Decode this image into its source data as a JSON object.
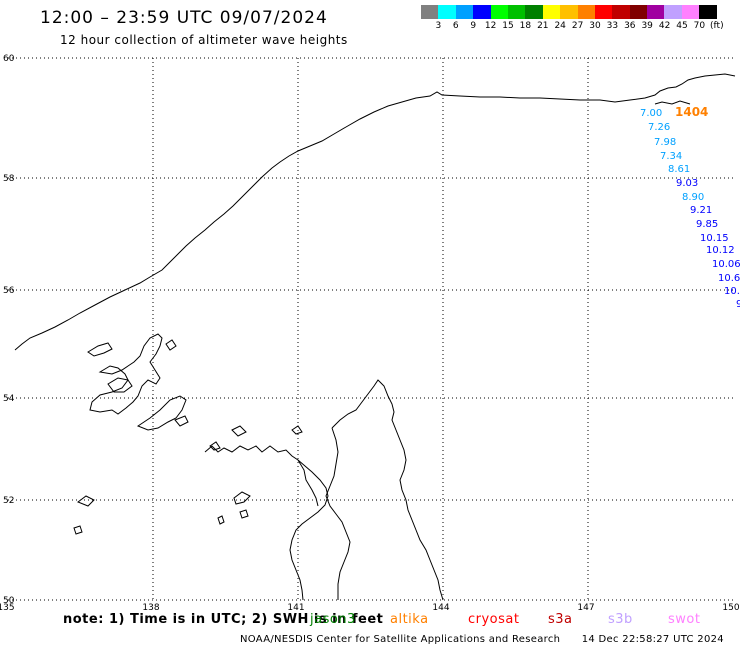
{
  "header": {
    "title": "12:00 – 23:59 UTC 09/07/2024",
    "subtitle": "12 hour collection of altimeter wave heights"
  },
  "colorbar": {
    "colors": [
      "#808080",
      "#00ffff",
      "#00a0ff",
      "#0000ff",
      "#00ff00",
      "#00c000",
      "#008000",
      "#ffff00",
      "#ffc000",
      "#ff8000",
      "#ff0000",
      "#c00000",
      "#800000",
      "#a000a0",
      "#c0a0ff",
      "#ff80ff",
      "#000000"
    ],
    "labels": [
      "3",
      "6",
      "9",
      "12",
      "15",
      "18",
      "21",
      "24",
      "27",
      "30",
      "33",
      "36",
      "39",
      "42",
      "45",
      "70",
      "(ft)"
    ]
  },
  "map": {
    "lat_ticks": [
      "60",
      "58",
      "56",
      "54",
      "52",
      "50"
    ],
    "lon_ticks": [
      "135",
      "138",
      "141",
      "144",
      "147",
      "150"
    ],
    "wave_labels": [
      {
        "text": "7.00",
        "color": "#00a0ff"
      },
      {
        "text": "7.26",
        "color": "#00a0ff"
      },
      {
        "text": "7.98",
        "color": "#00a0ff"
      },
      {
        "text": "7.34",
        "color": "#00a0ff"
      },
      {
        "text": "8.61",
        "color": "#00a0ff"
      },
      {
        "text": "9.03",
        "color": "#0000ff"
      },
      {
        "text": "8.90",
        "color": "#00a0ff"
      },
      {
        "text": "9.21",
        "color": "#0000ff"
      },
      {
        "text": "9.85",
        "color": "#0000ff"
      },
      {
        "text": "10.15",
        "color": "#0000ff"
      },
      {
        "text": "10.12",
        "color": "#0000ff"
      },
      {
        "text": "10.06",
        "color": "#0000ff"
      },
      {
        "text": "10.6",
        "color": "#0000ff"
      },
      {
        "text": "10.",
        "color": "#0000ff"
      },
      {
        "text": "9",
        "color": "#0000ff"
      }
    ],
    "overlap_label": {
      "text": "1404",
      "color": "#ff8000"
    }
  },
  "footer": {
    "note": "note: 1) Time is in UTC; 2) SWH is in feet",
    "satellites": [
      {
        "name": "jason3",
        "color": "#008000"
      },
      {
        "name": "altika",
        "color": "#ff8000"
      },
      {
        "name": "cryosat",
        "color": "#ff0000"
      },
      {
        "name": "s3a",
        "color": "#c00000"
      },
      {
        "name": "s3b",
        "color": "#c0a0ff"
      },
      {
        "name": "swot",
        "color": "#ff80ff"
      }
    ],
    "credit": "NOAA/NESDIS Center for Satellite Applications and Research",
    "timestamp": "14 Dec 22:58:27 UTC 2024"
  }
}
